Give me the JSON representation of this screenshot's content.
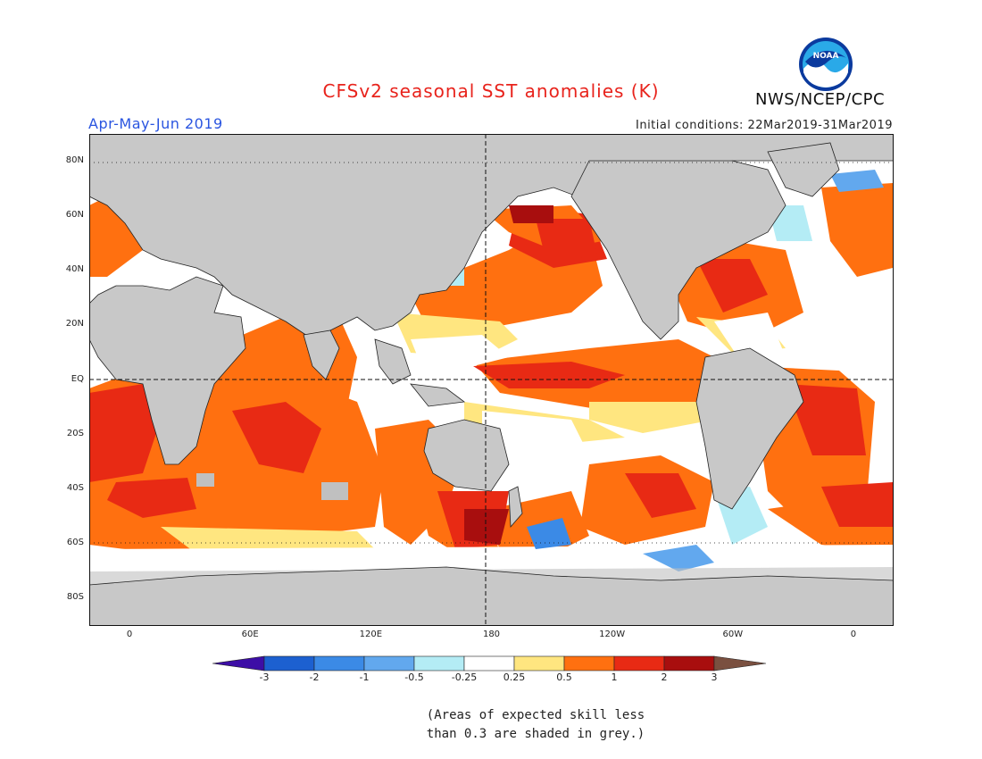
{
  "header": {
    "title": "CFSv2 seasonal SST anomalies (K)",
    "season": "Apr-May-Jun 2019",
    "initial_conditions": "Initial conditions: 22Mar2019-31Mar2019",
    "agency": "NWS/NCEP/CPC",
    "logo_text": "NOAA"
  },
  "map": {
    "projection": "cylindrical equidistant",
    "lon_range": [
      -20,
      380
    ],
    "lat_range": [
      -90,
      90
    ],
    "lat_labels": [
      "80N",
      "60N",
      "40N",
      "20N",
      "EQ",
      "20S",
      "40S",
      "60S",
      "80S"
    ],
    "lon_labels": [
      "0",
      "60E",
      "120E",
      "180",
      "120W",
      "60W",
      "0"
    ],
    "colors": {
      "land": "#c8c8c8",
      "missing_skill": "#c0c0c0",
      "neutral": "#ffffff"
    }
  },
  "colorbar": {
    "tick_labels": [
      "-3",
      "-2",
      "-1",
      "-0.5",
      "-0.25",
      "0.25",
      "0.5",
      "1",
      "2",
      "3"
    ],
    "colors": [
      "#3d0ea6",
      "#1c60d0",
      "#3b8ae6",
      "#62a8ee",
      "#b4ecf5",
      "#ffffff",
      "#ffe680",
      "#ff7010",
      "#e82a14",
      "#a80e0e",
      "#7a5040"
    ]
  },
  "footnote": {
    "line1": "(Areas of expected skill less",
    "line2": "than 0.3 are shaded in grey.)"
  }
}
